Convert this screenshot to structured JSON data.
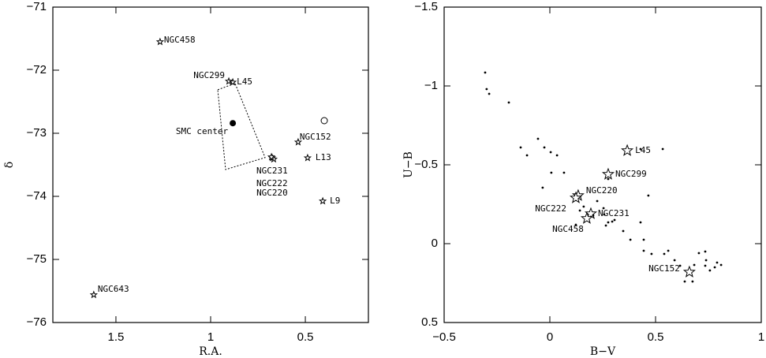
{
  "chart_data": [
    {
      "type": "scatter",
      "x_label": "R.A.",
      "y_label": "δ",
      "xlim": [
        1.833,
        0.167
      ],
      "ylim": [
        -76,
        -71
      ],
      "xticks": [
        1.5,
        1,
        0.5
      ],
      "yticks": [
        {
          "value": -71,
          "label": "−71"
        },
        {
          "value": -72,
          "label": "−72"
        },
        {
          "value": -73,
          "label": "−73"
        },
        {
          "value": -74,
          "label": "−74"
        },
        {
          "value": -75,
          "label": "−75"
        },
        {
          "value": -76,
          "label": "−76"
        }
      ],
      "series": [
        {
          "marker": "star",
          "color": "#000000",
          "x": [
            1.267,
            0.904,
            0.883,
            0.675,
            0.667,
            0.679,
            0.538,
            0.488,
            0.408,
            1.617
          ],
          "y": [
            -71.55,
            -72.175,
            -72.19,
            -73.39,
            -73.41,
            -73.375,
            -73.14,
            -73.39,
            -74.075,
            -75.56
          ],
          "labels": [
            "NGC458",
            "NGC299",
            "L45",
            "NGC231",
            "NGC222",
            "NGC220",
            "NGC152",
            "L13",
            "L9",
            "NGC643"
          ]
        },
        {
          "marker": "filled-circle",
          "color": "#000000",
          "x": [
            0.883
          ],
          "y": [
            -72.84
          ],
          "labels": [
            "SMC center"
          ]
        },
        {
          "marker": "open-circle",
          "color": "#000000",
          "x": [
            0.4
          ],
          "y": [
            -72.8
          ]
        },
        {
          "marker": "dashed-polygon",
          "color": "#000000",
          "x": [
            0.9625,
            0.871,
            0.7125,
            0.921
          ],
          "y": [
            -72.31,
            -72.21,
            -73.385,
            -73.575
          ]
        }
      ]
    },
    {
      "type": "scatter",
      "x_label": "B−V",
      "y_label": "U−B",
      "xlim": [
        -0.5,
        1
      ],
      "ylim": [
        0.5,
        -1.5
      ],
      "xticks": [
        {
          "value": -0.5,
          "label": "−0.5"
        },
        0,
        0.5,
        1
      ],
      "yticks": [
        {
          "value": -1.5,
          "label": "−1.5"
        },
        {
          "value": -1,
          "label": "−1"
        },
        {
          "value": -0.5,
          "label": "−0.5"
        },
        0,
        0.5
      ],
      "series": [
        {
          "marker": "star",
          "color": "#000000",
          "x": [
            0.366,
            0.276,
            0.134,
            0.123,
            0.194,
            0.175,
            0.66
          ],
          "y": [
            -0.59,
            -0.44,
            -0.305,
            -0.29,
            -0.19,
            -0.16,
            0.18
          ],
          "labels": [
            "L45",
            "NGC299",
            "NGC220",
            "NGC222",
            "NGC231",
            "NGC458",
            "NGC152"
          ]
        },
        {
          "marker": "dot",
          "color": "#000000",
          "x": [
            -0.306,
            -0.299,
            -0.287,
            -0.194,
            -0.138,
            -0.108,
            -0.056,
            -0.026,
            0.004,
            0.034,
            0.007,
            0.067,
            -0.034,
            0.276,
            0.466,
            0.429,
            0.534,
            0.142,
            0.16,
            0.254,
            0.257,
            0.276,
            0.295,
            0.306,
            0.265,
            0.347,
            0.381,
            0.429,
            0.444,
            0.444,
            0.481,
            0.541,
            0.56,
            0.59,
            0.616,
            0.638,
            0.675,
            0.683,
            0.705,
            0.735,
            0.739,
            0.735,
            0.757,
            0.78,
            0.791,
            0.81,
            0.123,
            0.205,
            0.224
          ],
          "y": [
            -1.085,
            -0.98,
            -0.95,
            -0.895,
            -0.61,
            -0.56,
            -0.665,
            -0.61,
            -0.58,
            -0.56,
            -0.45,
            -0.45,
            -0.355,
            -0.41,
            -0.305,
            -0.6,
            -0.6,
            -0.21,
            -0.235,
            -0.225,
            -0.185,
            -0.135,
            -0.14,
            -0.15,
            -0.115,
            -0.08,
            -0.025,
            -0.135,
            -0.025,
            0.045,
            0.065,
            0.065,
            0.045,
            0.105,
            0.14,
            0.24,
            0.24,
            0.135,
            0.06,
            0.05,
            0.105,
            0.14,
            0.17,
            0.15,
            0.12,
            0.135,
            -0.12,
            -0.18,
            -0.27
          ]
        }
      ]
    }
  ]
}
